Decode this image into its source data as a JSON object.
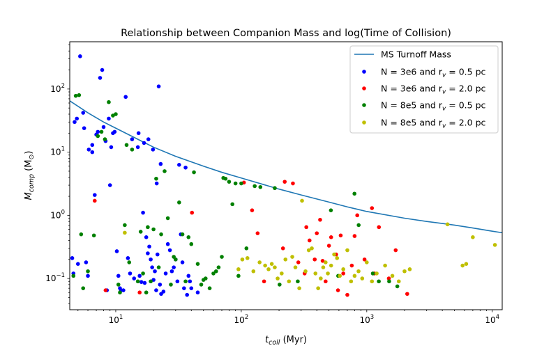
{
  "chart_data": {
    "type": "scatter",
    "title": "Relationship between Companion Mass and log(Time of Collision)",
    "xlabel": {
      "main": "t",
      "sub": "coll",
      "unit": " (Myr)"
    },
    "ylabel": {
      "main": "M",
      "sub": "comp",
      "unit_open": " (M",
      "unit_sub": "⊙",
      "unit_close": ")"
    },
    "xscale": "log",
    "yscale": "log",
    "xlim": [
      4.3,
      12000
    ],
    "ylim": [
      0.032,
      560
    ],
    "xticks": [
      {
        "base": "10",
        "exp": "1",
        "value": 10
      },
      {
        "base": "10",
        "exp": "2",
        "value": 100
      },
      {
        "base": "10",
        "exp": "3",
        "value": 1000
      },
      {
        "base": "10",
        "exp": "4",
        "value": 10000
      }
    ],
    "yticks": [
      {
        "base": "10",
        "exp": "−1",
        "value": 0.1
      },
      {
        "base": "10",
        "exp": "0",
        "value": 1
      },
      {
        "base": "10",
        "exp": "1",
        "value": 10
      },
      {
        "base": "10",
        "exp": "2",
        "value": 100
      }
    ],
    "grid": false,
    "legend_position": "top-right",
    "line": {
      "name": "MS Turnoff Mass",
      "color": "#1f77b4",
      "points": [
        [
          4.3,
          65
        ],
        [
          6,
          42
        ],
        [
          8,
          30
        ],
        [
          10,
          24
        ],
        [
          15,
          16
        ],
        [
          20,
          12
        ],
        [
          30,
          8.6
        ],
        [
          50,
          6
        ],
        [
          70,
          4.8
        ],
        [
          100,
          3.9
        ],
        [
          200,
          2.6
        ],
        [
          300,
          2.1
        ],
        [
          500,
          1.62
        ],
        [
          700,
          1.36
        ],
        [
          1000,
          1.15
        ],
        [
          2000,
          0.9
        ],
        [
          3000,
          0.8
        ],
        [
          5000,
          0.7
        ],
        [
          7000,
          0.63
        ],
        [
          10000,
          0.56
        ],
        [
          12000,
          0.53
        ]
      ]
    },
    "series": [
      {
        "name": {
          "pre": "N = 3e6 and r",
          "sub": "v",
          "post": " = 0.5 pc"
        },
        "color": "#0000ff",
        "points": [
          [
            4.5,
            0.21
          ],
          [
            4.6,
            0.12
          ],
          [
            4.7,
            30
          ],
          [
            4.9,
            34
          ],
          [
            5.0,
            0.17
          ],
          [
            5.2,
            330
          ],
          [
            5.5,
            42
          ],
          [
            5.6,
            24
          ],
          [
            5.8,
            0.18
          ],
          [
            6.0,
            0.11
          ],
          [
            6.1,
            11
          ],
          [
            6.5,
            13
          ],
          [
            6.8,
            2.1
          ],
          [
            6.5,
            10
          ],
          [
            7.0,
            19
          ],
          [
            7.2,
            21
          ],
          [
            7.5,
            150
          ],
          [
            7.8,
            200
          ],
          [
            8.0,
            25
          ],
          [
            8.3,
            15
          ],
          [
            8.5,
            0.065
          ],
          [
            8.8,
            34
          ],
          [
            9.0,
            3.0
          ],
          [
            9.2,
            12
          ],
          [
            9.5,
            20
          ],
          [
            9.8,
            21
          ],
          [
            10.2,
            0.27
          ],
          [
            10.5,
            0.11
          ],
          [
            10.8,
            0.07
          ],
          [
            11.0,
            0.065
          ],
          [
            11.5,
            0.065
          ],
          [
            12.0,
            75
          ],
          [
            12.5,
            0.21
          ],
          [
            13.0,
            0.12
          ],
          [
            13.5,
            16
          ],
          [
            14.0,
            0.1
          ],
          [
            15.0,
            12
          ],
          [
            15.5,
            0.11
          ],
          [
            16.0,
            0.088
          ],
          [
            16.5,
            1.1
          ],
          [
            17.0,
            0.085
          ],
          [
            17.5,
            0.45
          ],
          [
            18.0,
            0.25
          ],
          [
            18.5,
            0.32
          ],
          [
            19.0,
            0.2
          ],
          [
            19.5,
            0.15
          ],
          [
            20.0,
            0.095
          ],
          [
            20.5,
            0.13
          ],
          [
            21.0,
            0.065
          ],
          [
            21.5,
            0.24
          ],
          [
            22.0,
            110
          ],
          [
            22.5,
            0.08
          ],
          [
            23.0,
            0.057
          ],
          [
            24.0,
            0.062
          ],
          [
            25.0,
            0.12
          ],
          [
            26.0,
            0.35
          ],
          [
            27.0,
            0.28
          ],
          [
            28.0,
            0.13
          ],
          [
            29.0,
            0.15
          ],
          [
            30.0,
            0.2
          ],
          [
            31.0,
            0.09
          ],
          [
            32.0,
            6.3
          ],
          [
            33.0,
            0.5
          ],
          [
            34.0,
            0.18
          ],
          [
            35.0,
            0.07
          ],
          [
            36.0,
            5.7
          ],
          [
            37.0,
            0.055
          ],
          [
            38.0,
            0.11
          ],
          [
            39.0,
            0.09
          ],
          [
            40.0,
            0.07
          ],
          [
            45.0,
            0.06
          ],
          [
            18.2,
            16
          ],
          [
            19.8,
            11
          ],
          [
            22.8,
            6.5
          ],
          [
            21.2,
            3.2
          ],
          [
            16.8,
            14
          ],
          [
            15.2,
            20
          ]
        ]
      },
      {
        "name": {
          "pre": "N = 3e6 and r",
          "sub": "v",
          "post": " = 2.0 pc"
        },
        "color": "#ff0000",
        "points": [
          [
            6.8,
            1.7
          ],
          [
            8.3,
            0.065
          ],
          [
            15.5,
            0.06
          ],
          [
            40.5,
            1.1
          ],
          [
            105,
            3.3
          ],
          [
            122,
            1.2
          ],
          [
            135,
            0.52
          ],
          [
            152,
            0.09
          ],
          [
            215,
            0.3
          ],
          [
            222,
            3.4
          ],
          [
            258,
            3.2
          ],
          [
            285,
            0.18
          ],
          [
            320,
            0.12
          ],
          [
            330,
            0.65
          ],
          [
            350,
            0.4
          ],
          [
            385,
            0.2
          ],
          [
            400,
            0.52
          ],
          [
            425,
            0.85
          ],
          [
            445,
            0.19
          ],
          [
            470,
            0.09
          ],
          [
            500,
            0.33
          ],
          [
            520,
            0.45
          ],
          [
            570,
            0.24
          ],
          [
            590,
            0.065
          ],
          [
            620,
            0.48
          ],
          [
            650,
            0.12
          ],
          [
            700,
            0.055
          ],
          [
            760,
            0.16
          ],
          [
            800,
            0.47
          ],
          [
            840,
            1.0
          ],
          [
            960,
            0.2
          ],
          [
            1100,
            1.3
          ],
          [
            1150,
            0.12
          ],
          [
            1250,
            0.65
          ],
          [
            1500,
            0.1
          ],
          [
            1700,
            0.28
          ],
          [
            2100,
            0.057
          ]
        ]
      },
      {
        "name": {
          "pre": "N = 8e5 and r",
          "sub": "v",
          "post": " = 0.5 pc"
        },
        "color": "#008000",
        "points": [
          [
            4.6,
            0.11
          ],
          [
            4.8,
            78
          ],
          [
            5.1,
            80
          ],
          [
            5.3,
            0.5
          ],
          [
            5.5,
            0.07
          ],
          [
            6.0,
            0.13
          ],
          [
            6.7,
            0.48
          ],
          [
            7.2,
            18
          ],
          [
            7.7,
            21
          ],
          [
            8.2,
            16
          ],
          [
            8.8,
            62
          ],
          [
            9.5,
            38
          ],
          [
            10.0,
            40
          ],
          [
            10.5,
            0.08
          ],
          [
            10.8,
            0.06
          ],
          [
            11.8,
            0.7
          ],
          [
            12.2,
            13
          ],
          [
            12.8,
            0.18
          ],
          [
            13.5,
            11
          ],
          [
            15.0,
            0.09
          ],
          [
            15.8,
            0.55
          ],
          [
            16.5,
            0.12
          ],
          [
            17.5,
            0.06
          ],
          [
            18.0,
            0.65
          ],
          [
            19.0,
            0.09
          ],
          [
            20.0,
            0.6
          ],
          [
            21.0,
            3.8
          ],
          [
            22.0,
            0.15
          ],
          [
            23.0,
            0.5
          ],
          [
            24.5,
            5.0
          ],
          [
            26.0,
            0.9
          ],
          [
            27.5,
            0.08
          ],
          [
            29.0,
            0.22
          ],
          [
            30.0,
            0.2
          ],
          [
            32.0,
            1.6
          ],
          [
            34.0,
            0.5
          ],
          [
            36.0,
            0.09
          ],
          [
            38.0,
            0.45
          ],
          [
            40.0,
            0.35
          ],
          [
            42.0,
            4.8
          ],
          [
            45.0,
            0.17
          ],
          [
            48.0,
            0.08
          ],
          [
            50.0,
            0.095
          ],
          [
            52.0,
            0.1
          ],
          [
            56.0,
            0.07
          ],
          [
            60.0,
            0.12
          ],
          [
            63.0,
            0.13
          ],
          [
            66.0,
            0.15
          ],
          [
            70.0,
            0.22
          ],
          [
            72.0,
            3.9
          ],
          [
            75.0,
            3.8
          ],
          [
            80.0,
            3.4
          ],
          [
            85.0,
            1.5
          ],
          [
            90.0,
            3.2
          ],
          [
            95.0,
            0.11
          ],
          [
            100.0,
            3.2
          ],
          [
            110.0,
            0.3
          ],
          [
            128.0,
            2.9
          ],
          [
            142.0,
            2.8
          ],
          [
            185.0,
            2.7
          ],
          [
            202.0,
            0.08
          ],
          [
            282.0,
            0.09
          ],
          [
            518.0,
            1.2
          ],
          [
            592.0,
            0.11
          ],
          [
            798.0,
            2.2
          ],
          [
            862.0,
            0.7
          ],
          [
            1118.0,
            0.12
          ],
          [
            1248.0,
            0.09
          ],
          [
            1508.0,
            0.09
          ],
          [
            1752.0,
            0.075
          ]
        ]
      },
      {
        "name": {
          "pre": "N = 8e5 and r",
          "sub": "v",
          "post": " = 2.0 pc"
        },
        "color": "#bfbf00",
        "points": [
          [
            11.8,
            0.53
          ],
          [
            95,
            0.14
          ],
          [
            102,
            0.2
          ],
          [
            112,
            0.21
          ],
          [
            125,
            0.13
          ],
          [
            140,
            0.18
          ],
          [
            155,
            0.16
          ],
          [
            165,
            0.14
          ],
          [
            175,
            0.17
          ],
          [
            185,
            0.15
          ],
          [
            195,
            0.1
          ],
          [
            210,
            0.12
          ],
          [
            225,
            0.2
          ],
          [
            240,
            0.09
          ],
          [
            255,
            0.22
          ],
          [
            270,
            0.15
          ],
          [
            290,
            0.07
          ],
          [
            305,
            1.7
          ],
          [
            325,
            0.13
          ],
          [
            345,
            0.28
          ],
          [
            365,
            0.3
          ],
          [
            390,
            0.12
          ],
          [
            410,
            0.07
          ],
          [
            430,
            0.1
          ],
          [
            450,
            0.15
          ],
          [
            470,
            0.18
          ],
          [
            490,
            0.12
          ],
          [
            520,
            0.16
          ],
          [
            550,
            0.24
          ],
          [
            580,
            0.21
          ],
          [
            610,
            0.11
          ],
          [
            650,
            0.14
          ],
          [
            700,
            0.28
          ],
          [
            750,
            0.09
          ],
          [
            800,
            0.11
          ],
          [
            860,
            0.13
          ],
          [
            920,
            0.1
          ],
          [
            1000,
            0.18
          ],
          [
            1100,
            0.09
          ],
          [
            1200,
            0.12
          ],
          [
            1400,
            0.16
          ],
          [
            1600,
            0.11
          ],
          [
            1800,
            0.09
          ],
          [
            2000,
            0.13
          ],
          [
            2200,
            0.14
          ],
          [
            4400,
            0.72
          ],
          [
            5800,
            0.16
          ],
          [
            6200,
            0.17
          ],
          [
            7000,
            0.45
          ],
          [
            10500,
            0.34
          ]
        ]
      }
    ]
  }
}
